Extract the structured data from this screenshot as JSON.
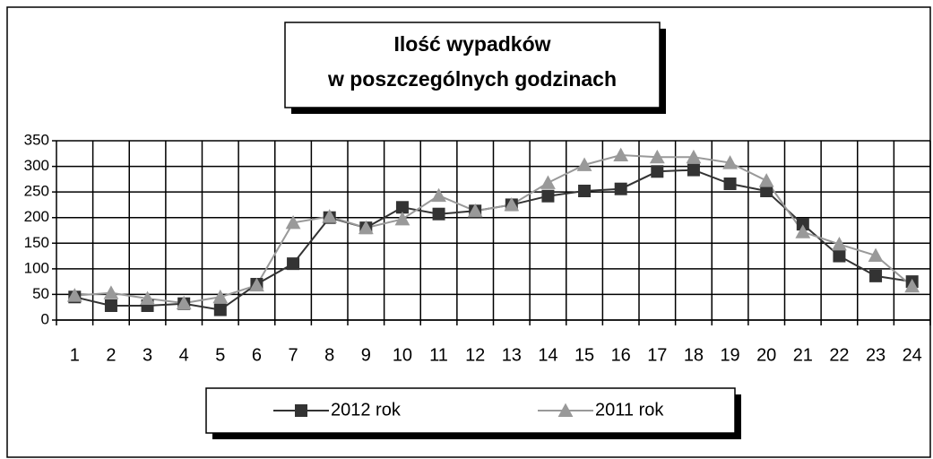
{
  "chart_data": {
    "type": "line",
    "title": [
      "Ilość wypadków",
      "w poszczególnych godzinach"
    ],
    "categories": [
      "1",
      "2",
      "3",
      "4",
      "5",
      "6",
      "7",
      "8",
      "9",
      "10",
      "11",
      "12",
      "13",
      "14",
      "15",
      "16",
      "17",
      "18",
      "19",
      "20",
      "21",
      "22",
      "23",
      "24"
    ],
    "series": [
      {
        "name": "2012 rok",
        "color": "#333333",
        "marker": "square",
        "values": [
          45,
          28,
          28,
          32,
          20,
          70,
          110,
          200,
          180,
          220,
          207,
          213,
          225,
          242,
          252,
          256,
          290,
          293,
          266,
          252,
          187,
          125,
          86,
          75
        ]
      },
      {
        "name": "2011 rok",
        "color": "#999999",
        "marker": "triangle",
        "values": [
          48,
          53,
          42,
          33,
          45,
          68,
          190,
          202,
          180,
          197,
          243,
          213,
          225,
          268,
          303,
          322,
          318,
          318,
          307,
          272,
          172,
          148,
          126,
          66
        ]
      }
    ],
    "ylim": [
      0,
      350
    ],
    "yticks": [
      0,
      50,
      100,
      150,
      200,
      250,
      300,
      350
    ],
    "grid": true
  }
}
